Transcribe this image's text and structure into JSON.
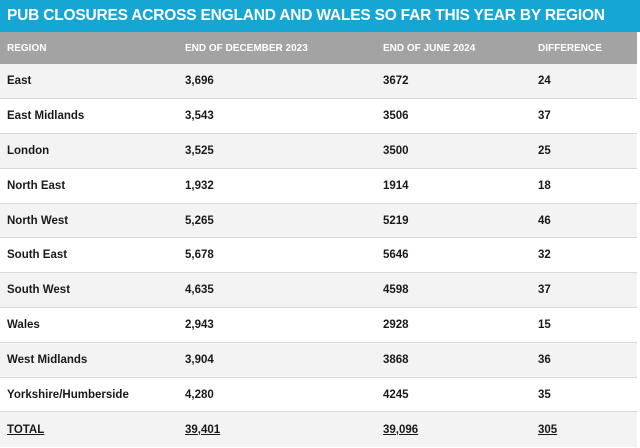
{
  "title": "PUB CLOSURES ACROSS ENGLAND AND WALES SO FAR THIS YEAR BY REGION",
  "headers": {
    "region": "REGION",
    "dec2023": "END OF DECEMBER 2023",
    "jun2024": "END OF JUNE 2024",
    "difference": "DIFFERENCE"
  },
  "rows": [
    {
      "region": "East",
      "dec2023": "3,696",
      "jun2024": "3672",
      "difference": "24"
    },
    {
      "region": "East Midlands",
      "dec2023": "3,543",
      "jun2024": "3506",
      "difference": "37"
    },
    {
      "region": "London",
      "dec2023": "3,525",
      "jun2024": "3500",
      "difference": "25"
    },
    {
      "region": "North East",
      "dec2023": "1,932",
      "jun2024": "1914",
      "difference": "18"
    },
    {
      "region": "North West",
      "dec2023": "5,265",
      "jun2024": "5219",
      "difference": "46"
    },
    {
      "region": "South East",
      "dec2023": "5,678",
      "jun2024": "5646",
      "difference": "32"
    },
    {
      "region": "South West",
      "dec2023": "4,635",
      "jun2024": "4598",
      "difference": "37"
    },
    {
      "region": "Wales",
      "dec2023": "2,943",
      "jun2024": "2928",
      "difference": "15"
    },
    {
      "region": "West Midlands",
      "dec2023": "3,904",
      "jun2024": "3868",
      "difference": "36"
    },
    {
      "region": "Yorkshire/Humberside",
      "dec2023": "4,280",
      "jun2024": "4245",
      "difference": "35"
    }
  ],
  "total": {
    "region": "TOTAL",
    "dec2023": "39,401",
    "jun2024": "39,096",
    "difference": "305"
  },
  "colors": {
    "banner": "#16a6d4",
    "header_row": "#a3a3a3",
    "row_shaded": "#f3f3f3",
    "row_plain": "#ffffff"
  }
}
